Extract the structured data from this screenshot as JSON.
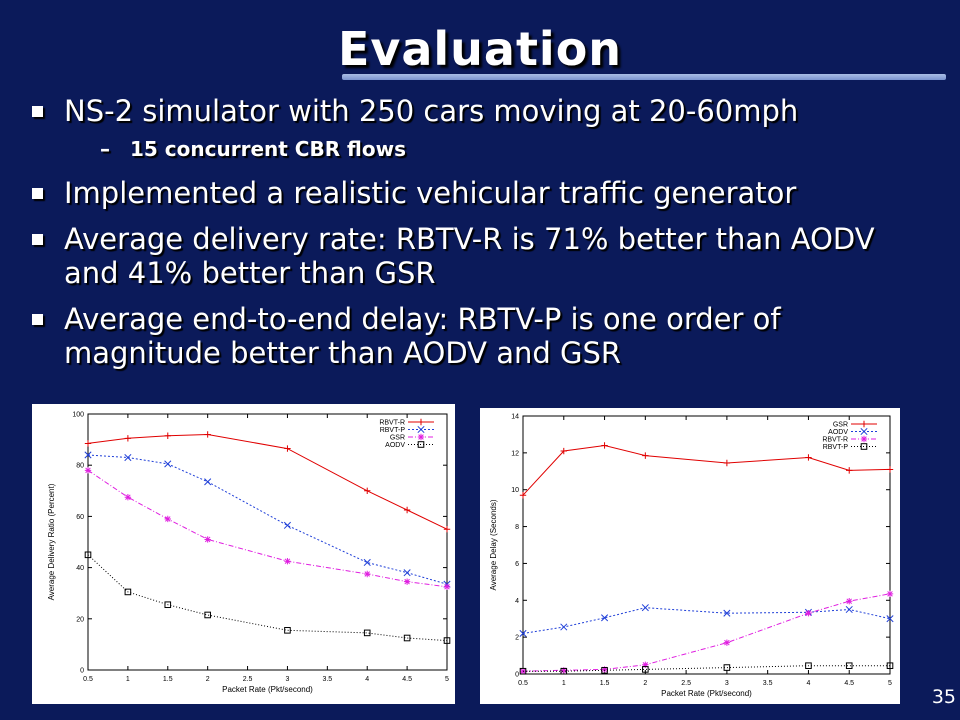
{
  "slide": {
    "title": "Evaluation",
    "page_number": "35",
    "bullets": [
      {
        "text": "NS-2 simulator with 250 cars moving at 20-60mph",
        "sub": [
          "15 concurrent CBR flows"
        ]
      },
      {
        "text": "Implemented a realistic vehicular traffic generator",
        "sub": []
      },
      {
        "text": "Average delivery rate: RBTV-R is 71% better than AODV and  41% better than GSR",
        "sub": []
      },
      {
        "text": "Average end-to-end delay: RBTV-P is one order of magnitude better than AODV and GSR",
        "sub": []
      }
    ],
    "sub_marker": "–",
    "colors": {
      "background": "#0b1a5a",
      "text": "#ffffff",
      "rule": "#a9bde6"
    }
  },
  "chart_data": [
    {
      "type": "line",
      "xlabel": "Packet Rate (Pkt/second)",
      "ylabel": "Average Delivery Ratio (Percent)",
      "xlim": [
        0.5,
        5
      ],
      "ylim": [
        0,
        100
      ],
      "xticks": [
        "0.5",
        "1",
        "1.5",
        "2",
        "2.5",
        "3",
        "3.5",
        "4",
        "4.5",
        "5"
      ],
      "yticks": [
        "0",
        "20",
        "40",
        "60",
        "80",
        "100"
      ],
      "legend": "top-right",
      "x": [
        0.5,
        1,
        1.5,
        2,
        3,
        4,
        4.5,
        5
      ],
      "series": [
        {
          "name": "RBVT-R",
          "color": "#e00000",
          "marker": "plus",
          "dash": "",
          "values": [
            88.5,
            90.5,
            91.5,
            92,
            86.5,
            70,
            62.5,
            55
          ]
        },
        {
          "name": "RBVT-P",
          "color": "#1f3fd8",
          "marker": "cross",
          "dash": "2,2",
          "values": [
            84,
            83,
            80.5,
            73.5,
            56.5,
            42,
            38,
            33.5
          ]
        },
        {
          "name": "GSR",
          "color": "#e020e0",
          "marker": "star",
          "dash": "5,2,1,2",
          "values": [
            78,
            67.5,
            59,
            51,
            42.5,
            37.5,
            34.5,
            32.5
          ]
        },
        {
          "name": "AODV",
          "color": "#000000",
          "marker": "square",
          "dash": "1,2",
          "values": [
            45,
            30.5,
            25.5,
            21.5,
            15.5,
            14.5,
            12.5,
            11.5
          ]
        }
      ]
    },
    {
      "type": "line",
      "xlabel": "Packet Rate (Pkt/second)",
      "ylabel": "Average Delay (Seconds)",
      "xlim": [
        0.5,
        5
      ],
      "ylim": [
        0,
        14
      ],
      "xticks": [
        "0.5",
        "1",
        "1.5",
        "2",
        "2.5",
        "3",
        "3.5",
        "4",
        "4.5",
        "5"
      ],
      "yticks": [
        "0",
        "2",
        "4",
        "6",
        "8",
        "10",
        "12",
        "14"
      ],
      "legend": "top-right",
      "x": [
        0.5,
        1,
        1.5,
        2,
        3,
        4,
        4.5,
        5
      ],
      "series": [
        {
          "name": "GSR",
          "color": "#e00000",
          "marker": "plus",
          "dash": "",
          "values": [
            9.7,
            12.1,
            12.4,
            11.85,
            11.45,
            11.75,
            11.05,
            11.1
          ]
        },
        {
          "name": "AODV",
          "color": "#1f3fd8",
          "marker": "cross",
          "dash": "2,2",
          "values": [
            2.2,
            2.55,
            3.05,
            3.6,
            3.3,
            3.35,
            3.5,
            3.0
          ]
        },
        {
          "name": "RBVT-R",
          "color": "#e020e0",
          "marker": "star",
          "dash": "5,2,1,2",
          "values": [
            0.15,
            0.2,
            0.25,
            0.5,
            1.7,
            3.3,
            3.95,
            4.35
          ]
        },
        {
          "name": "RBVT-P",
          "color": "#000000",
          "marker": "square",
          "dash": "1,2",
          "values": [
            0.15,
            0.15,
            0.2,
            0.25,
            0.35,
            0.45,
            0.45,
            0.45
          ]
        }
      ]
    }
  ]
}
